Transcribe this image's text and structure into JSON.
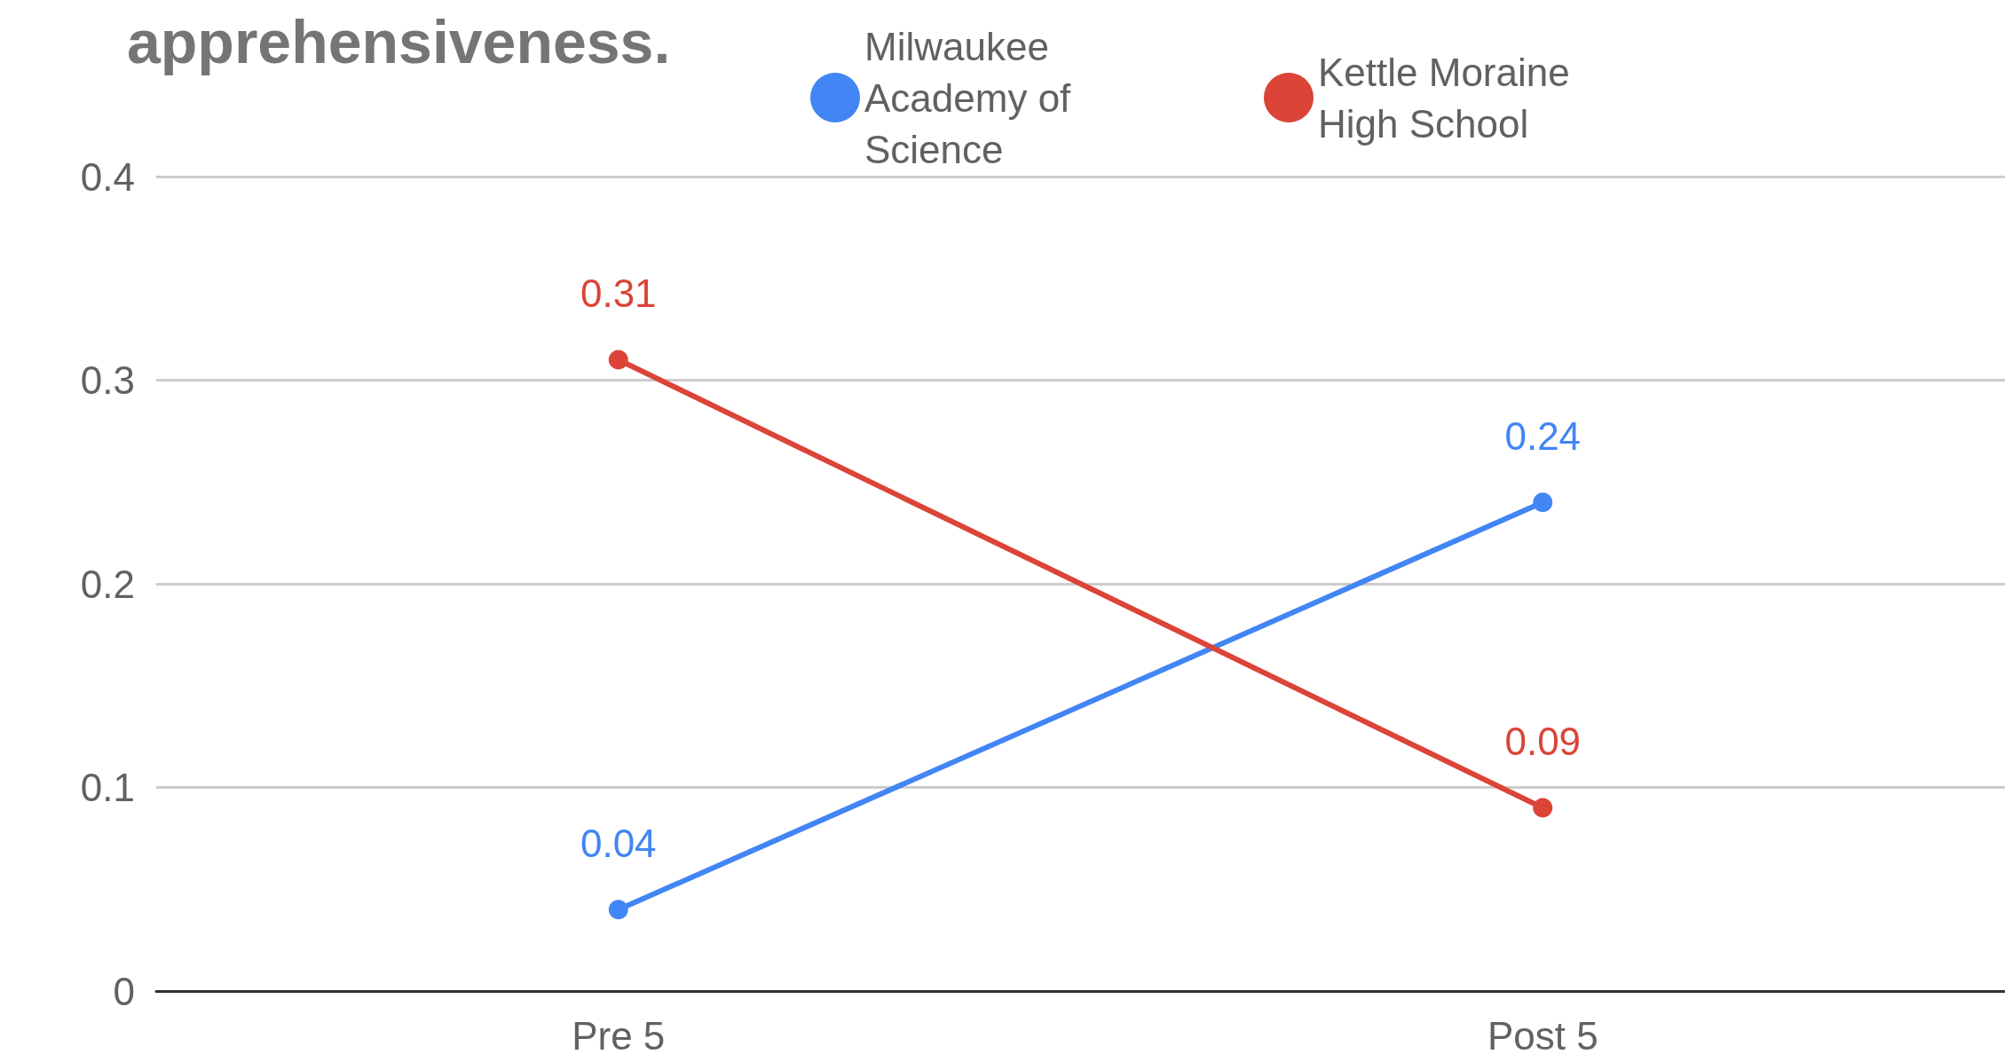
{
  "chart_data": {
    "type": "line",
    "title": "apprehensiveness.",
    "categories": [
      "Pre 5",
      "Post 5"
    ],
    "series": [
      {
        "name": "Milwaukee Academy of Science",
        "color": "#4285f4",
        "values": [
          0.04,
          0.24
        ]
      },
      {
        "name": "Kettle Moraine High School",
        "color": "#db4437",
        "values": [
          0.31,
          0.09
        ]
      }
    ],
    "ylim": [
      0,
      0.4
    ],
    "yticks": [
      0,
      0.1,
      0.2,
      0.3,
      0.4
    ],
    "grid": "y",
    "legend": "top",
    "marker": "circle",
    "line_style": "solid",
    "data_labels": true
  }
}
